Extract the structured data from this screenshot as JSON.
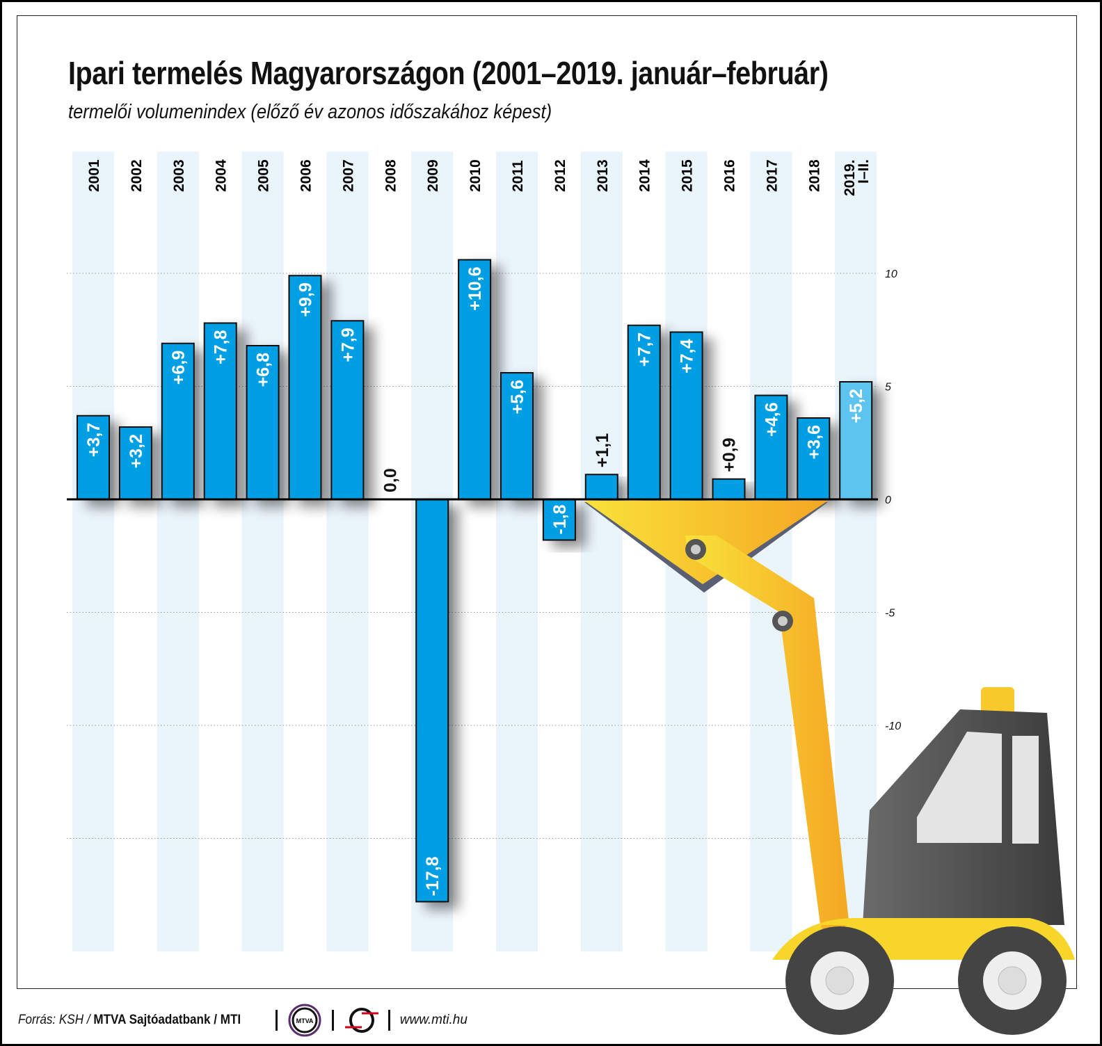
{
  "chart_data": {
    "type": "bar",
    "title": "Ipari termelés Magyarországon (2001–2019. január–február)",
    "subtitle": "termelői volumenindex (előző év azonos időszakához képest)",
    "categories": [
      "2001",
      "2002",
      "2003",
      "2004",
      "2005",
      "2006",
      "2007",
      "2008",
      "2009",
      "2010",
      "2011",
      "2012",
      "2013",
      "2014",
      "2015",
      "2016",
      "2017",
      "2018",
      "2019. I–II."
    ],
    "values": [
      3.7,
      3.2,
      6.9,
      7.8,
      6.8,
      9.9,
      7.9,
      0.0,
      -17.8,
      10.6,
      5.6,
      -1.8,
      1.1,
      7.7,
      7.4,
      0.9,
      4.6,
      3.6,
      5.2
    ],
    "data_labels": [
      "+3,7",
      "+3,2",
      "+6,9",
      "+7,8",
      "+6,8",
      "+9,9",
      "+7,9",
      "0,0",
      "-17,8",
      "+10,6",
      "+5,6",
      "-1,8",
      "+1,1",
      "+7,7",
      "+7,4",
      "+0,9",
      "+4,6",
      "+3,6",
      "+5,2"
    ],
    "ylim": [
      -20,
      15
    ],
    "yticks": [
      10,
      5,
      0,
      -5,
      -10
    ],
    "ytick_labels": [
      "10",
      "5",
      "0",
      "-5",
      "-10"
    ],
    "gridlines": [
      10,
      5,
      -5,
      -10,
      -15
    ],
    "grid": true,
    "xlabel": "",
    "ylabel": "",
    "colors": {
      "bar": "#009fe3",
      "highlight_bar": "#5bc4ee",
      "stripe": "#eaf4fb"
    }
  },
  "footer": {
    "source_prefix": "Forrás: KSH /",
    "source_bold": "MTVA Sajtóadatbank / MTI",
    "logo1": "MTVA",
    "website": "www.mti.hu"
  }
}
